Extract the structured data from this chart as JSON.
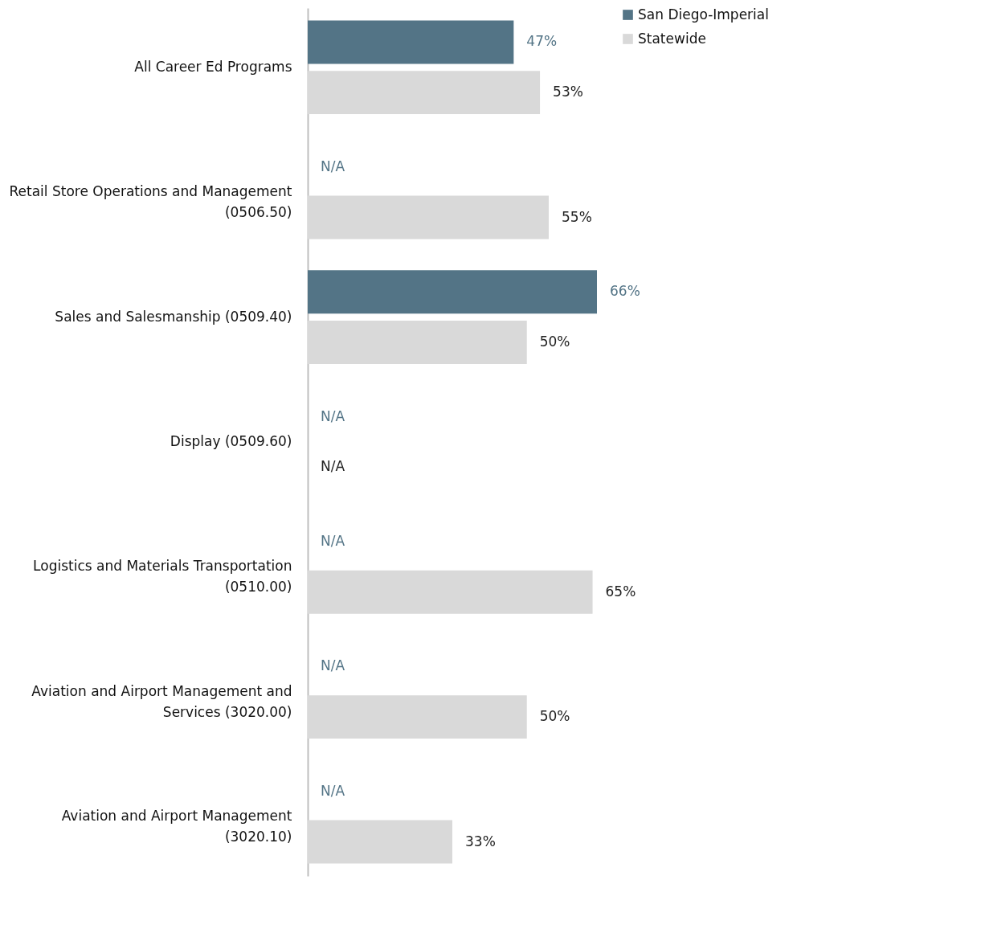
{
  "chart_data": {
    "type": "bar",
    "orientation": "horizontal",
    "legend": "right",
    "grid": false,
    "categories": [
      "All Career Ed Programs",
      "Retail Store Operations and Management (0506.50)",
      "Sales and Salesmanship (0509.40)",
      "Display (0509.60)",
      "Logistics and Materials Transportation (0510.00)",
      "Aviation and Airport Management and Services (3020.00)",
      "Aviation and Airport Management (3020.10)"
    ],
    "series": [
      {
        "name": "San Diego-Imperial",
        "color": "#537486",
        "values": [
          47,
          null,
          66,
          null,
          null,
          null,
          null
        ],
        "value_labels": [
          "47%",
          "N/A",
          "66%",
          "N/A",
          "N/A",
          "N/A",
          "N/A"
        ]
      },
      {
        "name": "Statewide",
        "color": "#d9d9d9",
        "values": [
          53,
          55,
          50,
          null,
          65,
          50,
          33
        ],
        "value_labels": [
          "53%",
          "55%",
          "50%",
          "N/A",
          "65%",
          "50%",
          "33%"
        ]
      }
    ]
  }
}
